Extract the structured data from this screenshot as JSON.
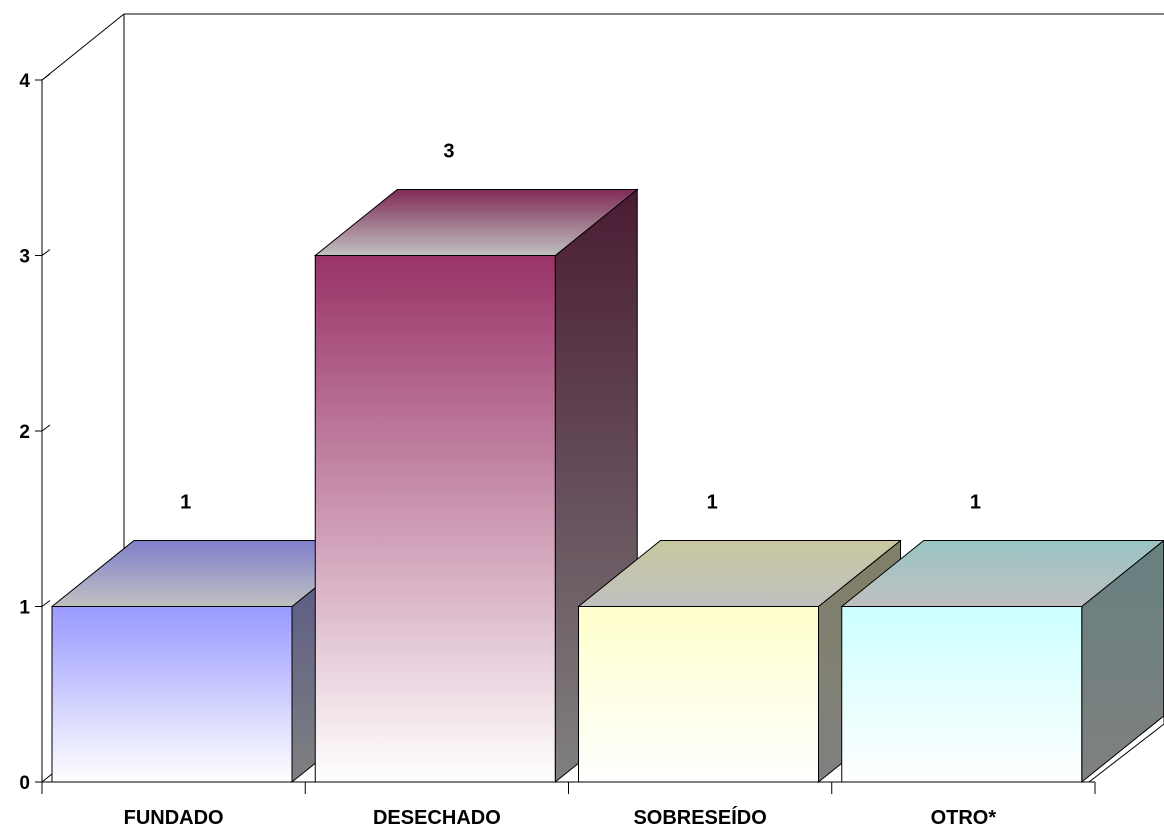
{
  "chart_data": {
    "type": "bar",
    "categories": [
      "FUNDADO",
      "DESECHADO",
      "SOBRESEÍDO",
      "OTRO*"
    ],
    "values": [
      1,
      3,
      1,
      1
    ],
    "data_labels": [
      "1",
      "3",
      "1",
      "1"
    ],
    "title": "",
    "xlabel": "",
    "ylabel": "",
    "ylim": [
      0,
      4
    ],
    "yticks": [
      0,
      1,
      2,
      3,
      4
    ],
    "grid": false,
    "style": "3d-gradient-columns",
    "bar_colors": [
      {
        "front_top": "#9999ff",
        "top": "#8080cc",
        "side": "#555588"
      },
      {
        "front_top": "#993366",
        "top": "#802b55",
        "side": "#4a1c33"
      },
      {
        "front_top": "#ffffcc",
        "top": "#c8c8a0",
        "side": "#808066"
      },
      {
        "front_top": "#ccffff",
        "top": "#99c4c4",
        "side": "#668080"
      }
    ]
  }
}
